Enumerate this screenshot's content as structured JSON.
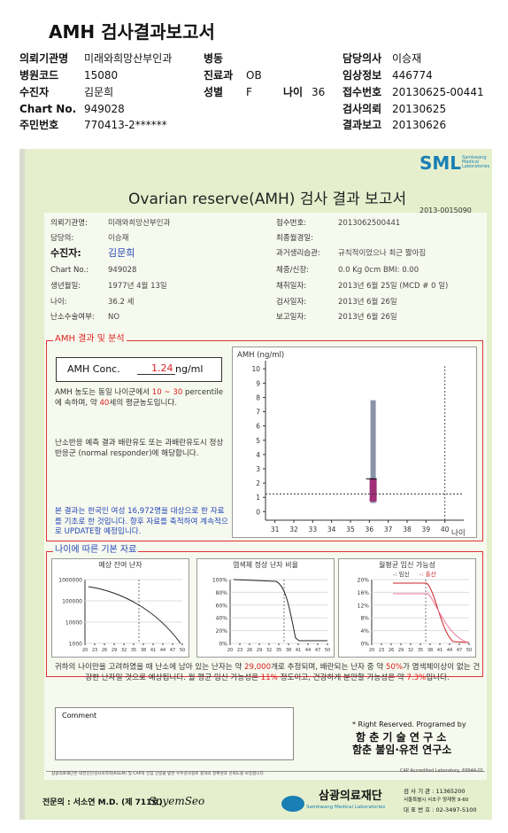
{
  "header": {
    "title": "AMH 검사결과보고서",
    "fields": [
      {
        "label": "의뢰기관명",
        "value": "미래와희망산부인과"
      },
      {
        "label": "병동"
      },
      {
        "label": "담당의사",
        "value": "이승재"
      },
      {
        "label": "병원코드",
        "value": "15080"
      },
      {
        "label": "진료과",
        "value": "OB"
      },
      {
        "label": "임상정보",
        "value": "446774"
      },
      {
        "label": "수진자",
        "value": "김문희"
      },
      {
        "label": "성별",
        "value": "F"
      },
      {
        "label": "나이",
        "value": "36"
      },
      {
        "label": "접수번호",
        "value": "20130625-00441"
      },
      {
        "label": "Chart No.",
        "value": "949028"
      },
      {
        "label": "검사의뢰",
        "value": "20130625"
      },
      {
        "label": "주민번호",
        "value": "770413-2******"
      },
      {
        "label": "결과보고",
        "value": "20130626"
      }
    ]
  },
  "report": {
    "logo": {
      "mark": "SML",
      "sub": "Samkwang Medical Laboratories"
    },
    "title": "Ovarian reserve(AMH) 검사 결과 보고서",
    "report_no": "2013-0015090",
    "left_fields": [
      {
        "label": "의뢰기관명:",
        "value": "미래와희망산부인과"
      },
      {
        "label": "담당의:",
        "value": "이승재"
      },
      {
        "label": "수진자:",
        "value": "김문희"
      },
      {
        "label": "Chart No.:",
        "value": "949028"
      },
      {
        "label": "생년월일:",
        "value": "1977년 4월 13일"
      },
      {
        "label": "나이:",
        "value": "36.2 세"
      },
      {
        "label": "난소수술여부:",
        "value": "NO"
      }
    ],
    "right_fields": [
      {
        "label": "접수번호:",
        "value": "2013062500441"
      },
      {
        "label": "최종월경일:"
      },
      {
        "label": "과거생리습관:",
        "value": "규칙적이었으나 최근 짧아짐"
      },
      {
        "label": "체중/신장:",
        "value": "0.0 Kg      0cm    BMI:  0.00"
      },
      {
        "label": "채취일자:",
        "value": "2013년 6월 25일   (MCD # 0 일)"
      },
      {
        "label": "검사일자:",
        "value": "2013년 6월 26일"
      },
      {
        "label": "보고일자:",
        "value": "2013년 6월 26일"
      }
    ],
    "analysis": {
      "heading": "AMH 결과 및 분석",
      "conc_label": "AMH Conc.",
      "conc_value": 1.24,
      "conc_unit": "ng/ml",
      "text1": [
        "AMH 농도는 동일 나이군에서 ",
        "10 ~ 30",
        " percentile에 속하며, 약 ",
        "40",
        "세의 평균농도입니다."
      ],
      "text2": "난소반응 예측 결과 배란유도 또는 과배란유도시 정상반응군 (normal responder)에 해당합니다.",
      "text3": "본 결과는 한국인 여성 16,972명을 대상으로 한 자료를 기초로 한 것입니다. 향후 자료를 축적하여 계속적으로 UPDATE할 예정입니다.",
      "chart": {
        "ylabel": "AMH (ng/ml)",
        "xlabel": "나이",
        "ylim": [
          -0.6,
          10.2
        ],
        "yticks": [
          0,
          1,
          2,
          3,
          4,
          5,
          6,
          7,
          8,
          9,
          10
        ],
        "xlim": [
          30.5,
          41
        ],
        "xticks": [
          31,
          32,
          33,
          34,
          35,
          36,
          37,
          38,
          39,
          40
        ],
        "age": 36.2,
        "range": [
          0.6,
          7.8
        ],
        "box": [
          0.7,
          2.3
        ]
      }
    },
    "basics": {
      "heading": "나이에 따른 기본 자료",
      "charts": [
        {
          "title": "예상 잔여 난자",
          "log": true,
          "ylim": [
            1000,
            1000000
          ],
          "yticks": [
            1000000,
            100000,
            10000,
            1000
          ],
          "xlim": [
            20,
            50
          ],
          "xticks": [
            20,
            23,
            26,
            29,
            32,
            35,
            38,
            41,
            44,
            47,
            50
          ]
        },
        {
          "title": "염색체 정상 난자 비율",
          "ylim": [
            0,
            100
          ],
          "yticks": [
            {
              "value": 100,
              "label": "100%"
            },
            {
              "value": 80,
              "label": "80%"
            },
            {
              "value": 60,
              "label": "60%"
            },
            {
              "value": 40,
              "label": "40%"
            },
            {
              "value": 20,
              "label": "20%"
            },
            {
              "value": 0,
              "label": "0%"
            }
          ],
          "xlim": [
            20,
            50
          ],
          "xticks": [
            20,
            23,
            26,
            29,
            32,
            35,
            38,
            41,
            44,
            47,
            50
          ]
        },
        {
          "title": "월평균 임신 가능성",
          "legend": [
            "-: 임신",
            "-: 출산"
          ],
          "ylim": [
            0,
            20
          ],
          "yticks": [
            {
              "value": 20,
              "label": "20%"
            },
            {
              "value": 16,
              "label": "16%"
            },
            {
              "value": 12,
              "label": "12%"
            },
            {
              "value": 8,
              "label": "8%"
            },
            {
              "value": 4,
              "label": "4%"
            },
            {
              "value": 0,
              "label": "0%"
            }
          ],
          "xlim": [
            20,
            50
          ],
          "xticks": [
            20,
            23,
            26,
            29,
            32,
            35,
            38,
            41,
            44,
            47,
            50
          ]
        }
      ],
      "text": [
        "귀하의 나이만을 고려하였을 때 난소에 남아 있는 난자는 약 ",
        "29,000",
        "개로 추정되며, 배란되는 난자 중 약 ",
        "50%",
        "가 염색체이상이 없는 건강한 난자일 것으로 예상됩니다. 월 평균 임신 가능성은 ",
        "11%",
        " 정도이고, 건강하게 분만할 가능성은 약 ",
        "7.3%",
        "입니다."
      ]
    },
    "comment_label": "Comment",
    "credits": [
      "* Right Reserved. Programed by",
      "함 춘 기 술 연 구 소",
      "함춘 불임·유전 연구소"
    ],
    "footer": {
      "notice": "삼광의료재단은 대한진단검사의학회(KSLM) 및 CAP의 신임 인증을 받은 우수검사실로 결과의 정확성과 신뢰도를 보증합니다.",
      "cap": "CAP Accredited Laboratory, 69944-01",
      "doctor": "전문의 : 서소연 M.D. (제 711호)",
      "signature": "SoyemSeo",
      "org": "삼광의료재단",
      "org_en": "Samkwang Medical Laboratories",
      "address": [
        "검 사 기 관 : 11365200",
        "서울특별시 서초구 양재동 9-60",
        "대 표 번 호 : 02-3497-5100"
      ]
    }
  }
}
